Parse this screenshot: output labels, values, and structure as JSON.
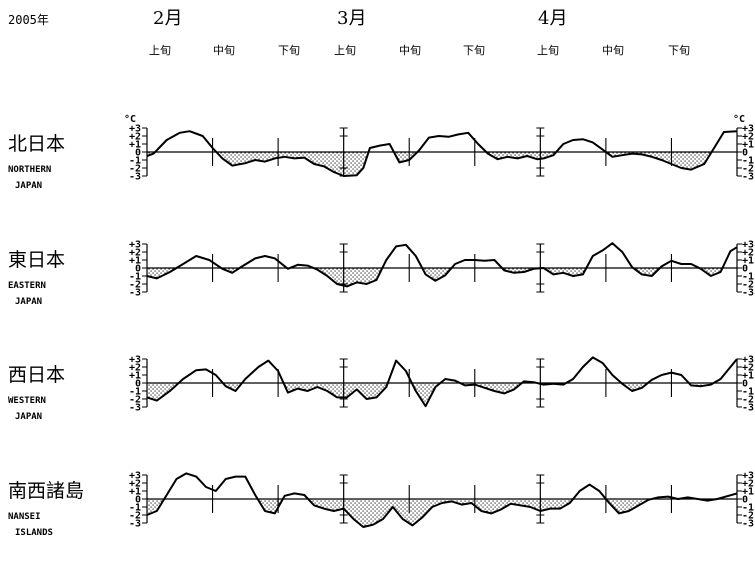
{
  "header": {
    "year": "2005年",
    "months": [
      "2月",
      "3月",
      "4月"
    ],
    "dekads": [
      "上旬",
      "中旬",
      "下旬",
      "上旬",
      "中旬",
      "下旬",
      "上旬",
      "中旬",
      "下旬"
    ]
  },
  "colors": {
    "line": "#000000",
    "fill_pattern": "dotted-black",
    "background": "#ffffff"
  },
  "chart_data": {
    "type": "line",
    "unit": "°C",
    "x_axis": "dekads of Feb–Apr 2005",
    "x_range": [
      0,
      9
    ],
    "ylim": [
      -3,
      3
    ],
    "yticks": [
      "+3",
      "+2",
      "+1",
      "0",
      "-1",
      "-2",
      "-3"
    ],
    "fill": "negative values shaded with dot pattern",
    "series": [
      {
        "name_jp": "北日本",
        "name_en": [
          "NORTHERN",
          "JAPAN"
        ],
        "x": [
          0,
          0.1,
          0.3,
          0.5,
          0.65,
          0.85,
          1.0,
          1.15,
          1.3,
          1.5,
          1.65,
          1.8,
          1.95,
          2.1,
          2.25,
          2.4,
          2.55,
          2.7,
          2.85,
          3.0,
          3.2,
          3.3,
          3.4,
          3.55,
          3.7,
          3.85,
          4.0,
          4.15,
          4.3,
          4.45,
          4.6,
          4.75,
          4.9,
          5.05,
          5.2,
          5.35,
          5.5,
          5.65,
          5.8,
          5.95,
          6.05,
          6.2,
          6.35,
          6.5,
          6.65,
          6.8,
          6.95,
          7.1,
          7.25,
          7.4,
          7.55,
          7.7,
          7.85,
          8.0,
          8.15,
          8.3,
          8.5,
          8.65,
          8.8,
          9.0
        ],
        "values": [
          -0.5,
          -0.2,
          1.5,
          2.4,
          2.6,
          2.0,
          0.5,
          -0.8,
          -1.7,
          -1.4,
          -1.0,
          -1.2,
          -0.8,
          -0.6,
          -0.8,
          -0.7,
          -1.5,
          -1.8,
          -2.5,
          -3.0,
          -2.9,
          -2.0,
          0.5,
          0.8,
          1.0,
          -1.3,
          -1.0,
          0.2,
          1.8,
          2.0,
          1.9,
          2.2,
          2.4,
          1.0,
          -0.2,
          -0.9,
          -0.6,
          -0.8,
          -0.5,
          -0.9,
          -0.8,
          -0.4,
          1.0,
          1.5,
          1.6,
          1.2,
          0.3,
          -0.6,
          -0.4,
          -0.2,
          -0.3,
          -0.6,
          -1.0,
          -1.5,
          -2.0,
          -2.2,
          -1.5,
          0.5,
          2.5,
          2.6
        ]
      },
      {
        "name_jp": "東日本",
        "name_en": [
          "EASTERN",
          "JAPAN"
        ],
        "x": [
          0,
          0.15,
          0.35,
          0.55,
          0.75,
          0.95,
          1.15,
          1.3,
          1.45,
          1.65,
          1.8,
          1.95,
          2.15,
          2.3,
          2.45,
          2.6,
          2.75,
          2.9,
          3.05,
          3.2,
          3.35,
          3.5,
          3.65,
          3.8,
          3.95,
          4.1,
          4.25,
          4.4,
          4.55,
          4.7,
          4.85,
          5.0,
          5.15,
          5.3,
          5.45,
          5.6,
          5.75,
          5.9,
          6.05,
          6.2,
          6.35,
          6.5,
          6.65,
          6.8,
          6.95,
          7.1,
          7.25,
          7.4,
          7.55,
          7.7,
          7.85,
          8.0,
          8.15,
          8.3,
          8.45,
          8.6,
          8.75,
          8.9,
          9.0
        ],
        "values": [
          -1.0,
          -1.3,
          -0.5,
          0.5,
          1.5,
          1.0,
          -0.1,
          -0.6,
          0.2,
          1.2,
          1.5,
          1.2,
          -0.1,
          0.4,
          0.3,
          -0.2,
          -1.0,
          -2.0,
          -2.3,
          -1.8,
          -2.0,
          -1.5,
          1.0,
          2.7,
          2.9,
          1.5,
          -0.8,
          -1.6,
          -0.9,
          0.5,
          1.0,
          1.0,
          0.9,
          1.0,
          -0.3,
          -0.6,
          -0.5,
          -0.1,
          0.0,
          -0.8,
          -0.6,
          -1.0,
          -0.8,
          1.5,
          2.2,
          3.1,
          2.0,
          0.1,
          -0.8,
          -1.0,
          0.2,
          0.9,
          0.5,
          0.5,
          -0.1,
          -1.0,
          -0.5,
          2.1,
          2.6
        ]
      },
      {
        "name_jp": "西日本",
        "name_en": [
          "WESTERN",
          "JAPAN"
        ],
        "x": [
          0,
          0.15,
          0.35,
          0.55,
          0.75,
          0.9,
          1.05,
          1.2,
          1.35,
          1.5,
          1.7,
          1.85,
          2.0,
          2.15,
          2.3,
          2.45,
          2.6,
          2.75,
          2.9,
          3.05,
          3.2,
          3.35,
          3.5,
          3.65,
          3.8,
          3.95,
          4.1,
          4.25,
          4.4,
          4.55,
          4.7,
          4.85,
          5.0,
          5.15,
          5.3,
          5.45,
          5.6,
          5.75,
          5.9,
          6.05,
          6.2,
          6.35,
          6.5,
          6.65,
          6.8,
          6.95,
          7.1,
          7.25,
          7.4,
          7.55,
          7.7,
          7.85,
          8.0,
          8.15,
          8.3,
          8.45,
          8.6,
          8.75,
          9.0
        ],
        "values": [
          -1.8,
          -2.2,
          -1.0,
          0.5,
          1.6,
          1.7,
          1.0,
          -0.4,
          -1.0,
          0.5,
          2.0,
          2.8,
          1.5,
          -1.2,
          -0.7,
          -1.0,
          -0.5,
          -1.0,
          -1.8,
          -1.8,
          -0.8,
          -2.0,
          -1.8,
          -0.5,
          2.8,
          1.5,
          -1.0,
          -2.9,
          -0.5,
          0.5,
          0.3,
          -0.3,
          -0.2,
          -0.6,
          -1.0,
          -1.3,
          -0.8,
          0.2,
          0.1,
          -0.2,
          -0.1,
          -0.2,
          0.5,
          2.0,
          3.2,
          2.5,
          1.0,
          -0.1,
          -1.0,
          -0.6,
          0.4,
          1.0,
          1.3,
          1.0,
          -0.3,
          -0.4,
          -0.2,
          0.5,
          3.0
        ]
      },
      {
        "name_jp": "南西諸島",
        "name_en": [
          "NANSEI",
          "ISLANDS"
        ],
        "x": [
          0,
          0.15,
          0.3,
          0.45,
          0.6,
          0.75,
          0.9,
          1.05,
          1.2,
          1.35,
          1.5,
          1.65,
          1.8,
          1.95,
          2.1,
          2.25,
          2.4,
          2.55,
          2.7,
          2.85,
          3.0,
          3.15,
          3.3,
          3.45,
          3.6,
          3.75,
          3.9,
          4.05,
          4.2,
          4.35,
          4.5,
          4.65,
          4.8,
          4.95,
          5.1,
          5.25,
          5.4,
          5.55,
          5.7,
          5.85,
          6.0,
          6.15,
          6.3,
          6.45,
          6.6,
          6.75,
          6.9,
          7.05,
          7.2,
          7.35,
          7.5,
          7.65,
          7.8,
          7.95,
          8.1,
          8.25,
          8.4,
          8.55,
          8.7,
          9.0
        ],
        "values": [
          -2.0,
          -1.5,
          0.5,
          2.5,
          3.2,
          2.8,
          1.5,
          1.0,
          2.5,
          2.8,
          2.8,
          0.5,
          -1.5,
          -1.8,
          0.4,
          0.7,
          0.5,
          -0.8,
          -1.2,
          -1.5,
          -1.2,
          -2.5,
          -3.5,
          -3.2,
          -2.5,
          -1.0,
          -2.5,
          -3.3,
          -2.3,
          -1.0,
          -0.5,
          -0.3,
          -0.7,
          -0.5,
          -1.5,
          -1.8,
          -1.3,
          -0.6,
          -0.8,
          -1.0,
          -1.5,
          -1.2,
          -1.2,
          -0.5,
          1.0,
          1.8,
          1.0,
          -0.5,
          -1.8,
          -1.5,
          -0.8,
          -0.1,
          0.2,
          0.3,
          0.0,
          0.2,
          0.0,
          -0.2,
          0.0,
          0.7
        ]
      }
    ]
  }
}
